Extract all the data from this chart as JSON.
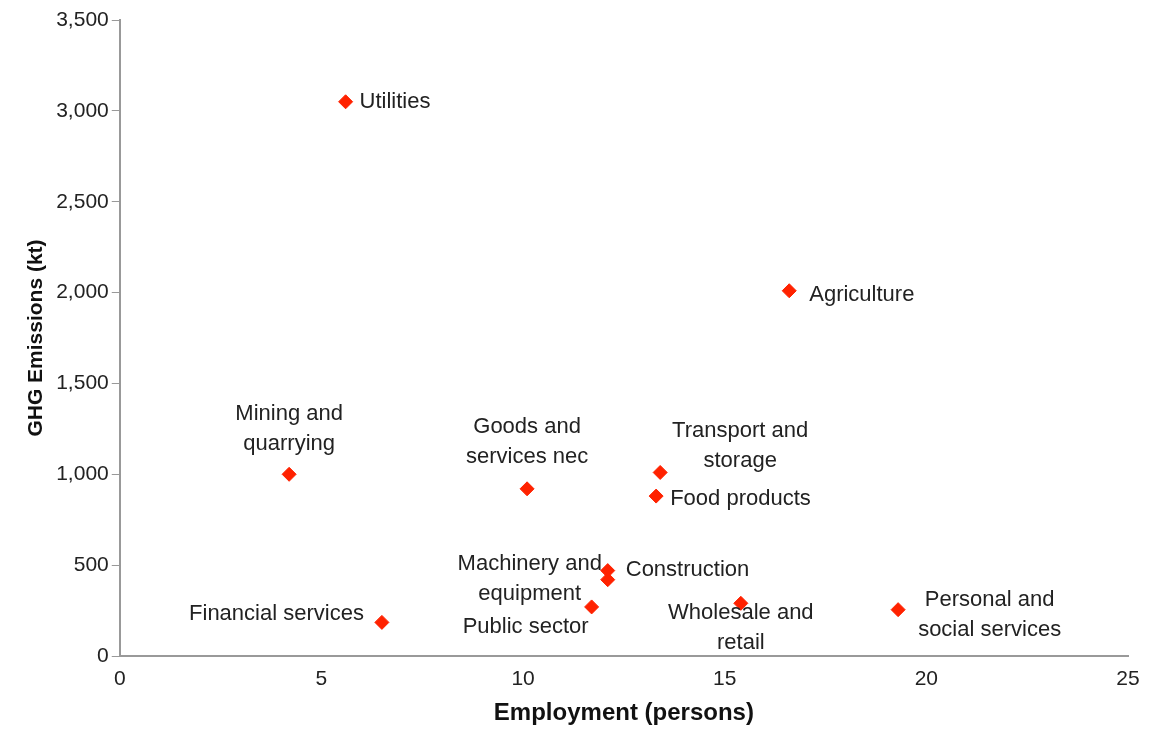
{
  "chart_data": {
    "type": "scatter",
    "xlabel": "Employment (persons)",
    "ylabel": "GHG Emissions (kt)",
    "x": [
      5.6,
      16.6,
      4.2,
      10.1,
      13.4,
      13.3,
      12.1,
      12.1,
      11.7,
      15.4,
      19.3,
      6.5
    ],
    "values": [
      3050,
      2010,
      1000,
      920,
      1010,
      880,
      470,
      420,
      270,
      290,
      255,
      185
    ],
    "color": "#ff2200",
    "marker": "diamond",
    "grid": false,
    "legend": false,
    "xlim": [
      0,
      25
    ],
    "xticks": [
      0,
      5,
      10,
      15,
      20,
      25
    ],
    "ylim": [
      0,
      3500
    ],
    "yticks": [
      0,
      {
        "value": 500,
        "label": "500"
      },
      {
        "value": 1000,
        "label": "1,000"
      },
      {
        "value": 1500,
        "label": "1,500"
      },
      {
        "value": 2000,
        "label": "2,000"
      },
      {
        "value": 2500,
        "label": "2,500"
      },
      {
        "value": 3000,
        "label": "3,000"
      },
      {
        "value": 3500,
        "label": "3,500"
      }
    ],
    "annotations": [
      {
        "text": "Utilities",
        "x": 5.6,
        "y": 3050
      },
      {
        "text": "Agriculture",
        "x": 16.6,
        "y": 2010
      },
      {
        "text": "Mining and quarrying",
        "x": 4.2,
        "y": 1000
      },
      {
        "text": "Goods and services nec",
        "x": 10.1,
        "y": 920
      },
      {
        "text": "Transport and storage",
        "x": 13.4,
        "y": 1010
      },
      {
        "text": "Food products",
        "x": 13.3,
        "y": 880
      },
      {
        "text": "Construction",
        "x": 12.1,
        "y": 470
      },
      {
        "text": "Machinery and equipment",
        "x": 12.1,
        "y": 420
      },
      {
        "text": "Public sector",
        "x": 11.7,
        "y": 270
      },
      {
        "text": "Wholesale and retail",
        "x": 15.4,
        "y": 290
      },
      {
        "text": "Personal and social services",
        "x": 19.3,
        "y": 255
      },
      {
        "text": "Financial services",
        "x": 6.5,
        "y": 185
      }
    ]
  }
}
